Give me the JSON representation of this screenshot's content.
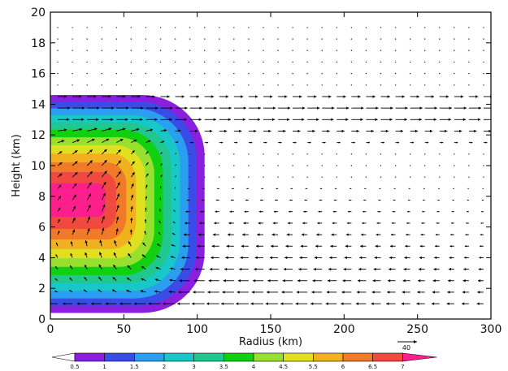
{
  "chart_data": {
    "type": "contour",
    "xlabel": "Radius (km)",
    "ylabel": "Height (km)",
    "xlim": [
      0,
      300
    ],
    "ylim": [
      0,
      20
    ],
    "x_ticks": [
      "0",
      "50",
      "100",
      "150",
      "200",
      "250",
      "300"
    ],
    "y_ticks": [
      "0",
      "2",
      "4",
      "6",
      "8",
      "10",
      "12",
      "14",
      "16",
      "18",
      "20"
    ],
    "grid": false,
    "contour_field": {
      "levels": [
        0.5,
        1,
        1.5,
        2,
        3,
        3.5,
        4,
        4.5,
        5.5,
        6,
        6.5,
        7
      ],
      "level_labels": [
        "0.5",
        "1",
        "1.5",
        "2",
        "3",
        "3.5",
        "4",
        "4.5",
        "5.5",
        "6",
        "6.5",
        "7"
      ],
      "colors": [
        "#ffffff",
        "#8a1fe0",
        "#3a4ce6",
        "#2a9ff0",
        "#18c8c8",
        "#20c890",
        "#10d010",
        "#98e030",
        "#e0e020",
        "#f0b020",
        "#f07a28",
        "#f04a40",
        "#ff1f8c"
      ],
      "maximum_center": {
        "radius_km": 28,
        "height_km": 7.8
      },
      "outer_edge_radius_km": 105,
      "top_height_km": 14.6,
      "bottom_height_km": 0.4
    },
    "vector_field": {
      "reference_vector_label": "40",
      "upper_outflow_layer_km": [
        11,
        15
      ],
      "inflow_layer_km": [
        0.5,
        9
      ]
    }
  }
}
